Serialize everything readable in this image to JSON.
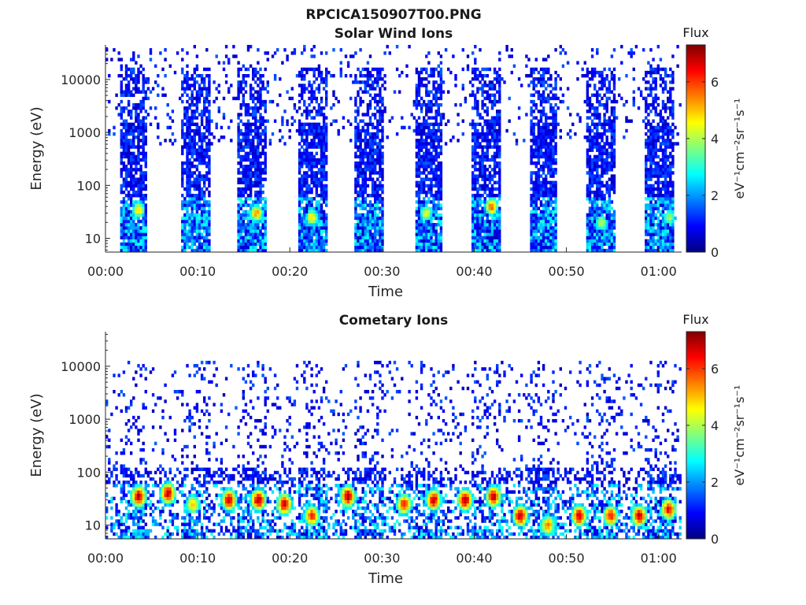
{
  "figure_title": "RPCICA150907T00.PNG",
  "colors": {
    "jet": [
      "#00007f",
      "#0000ff",
      "#007fff",
      "#00ffff",
      "#7fff7f",
      "#ffff00",
      "#ff7f00",
      "#ff0000",
      "#7f0000"
    ]
  },
  "chart_data": [
    {
      "type": "heatmap",
      "title": "Solar Wind Ions",
      "xlabel": "Time",
      "ylabel": "Energy (eV)",
      "x_unit": "minutes since 00:00",
      "xlim": [
        0,
        62.5
      ],
      "x_ticks": [
        0,
        10,
        20,
        30,
        40,
        50,
        60
      ],
      "x_tick_labels": [
        "00:00",
        "00:10",
        "00:20",
        "00:30",
        "00:40",
        "00:50",
        "01:00"
      ],
      "y_scale": "log",
      "ylim": [
        5.5,
        45000
      ],
      "y_ticks": [
        10,
        100,
        1000,
        10000
      ],
      "y_tick_labels": [
        "10",
        "100",
        "1000",
        "10000"
      ],
      "colorbar": {
        "title": "Flux",
        "label": "eV⁻¹cm⁻²sr⁻¹s⁻¹",
        "range": [
          0,
          7.3
        ],
        "ticks": [
          0,
          2,
          4,
          6
        ],
        "tick_labels": [
          "0",
          "2",
          "4",
          "6"
        ]
      },
      "sweeps_min": [
        [
          1.6,
          4.6
        ],
        [
          8.1,
          11.4
        ],
        [
          14.4,
          17.6
        ],
        [
          20.8,
          24.1
        ],
        [
          27.0,
          30.1
        ],
        [
          33.5,
          36.4
        ],
        [
          39.8,
          43.0
        ],
        [
          46.0,
          49.0
        ],
        [
          52.2,
          55.3
        ],
        [
          58.6,
          61.7
        ]
      ],
      "hot_spots": [
        {
          "t": 3.6,
          "e": 35,
          "v": 5.0
        },
        {
          "t": 16.4,
          "e": 30,
          "v": 5.2
        },
        {
          "t": 22.4,
          "e": 25,
          "v": 4.8
        },
        {
          "t": 34.8,
          "e": 30,
          "v": 4.6
        },
        {
          "t": 41.9,
          "e": 40,
          "v": 5.8
        },
        {
          "t": 53.8,
          "e": 20,
          "v": 4.2
        },
        {
          "t": 61.2,
          "e": 25,
          "v": 4.0
        }
      ]
    },
    {
      "type": "heatmap",
      "title": "Cometary Ions",
      "xlabel": "Time",
      "ylabel": "Energy (eV)",
      "x_unit": "minutes since 00:00",
      "xlim": [
        0,
        62.5
      ],
      "x_ticks": [
        0,
        10,
        20,
        30,
        40,
        50,
        60
      ],
      "x_tick_labels": [
        "00:00",
        "00:10",
        "00:20",
        "00:30",
        "00:40",
        "00:50",
        "01:00"
      ],
      "y_scale": "log",
      "ylim": [
        5.5,
        45000
      ],
      "y_ticks": [
        10,
        100,
        1000,
        10000
      ],
      "y_tick_labels": [
        "10",
        "100",
        "1000",
        "10000"
      ],
      "colorbar": {
        "title": "Flux",
        "label": "eV⁻¹cm⁻²sr⁻¹s⁻¹",
        "range": [
          0,
          7.3
        ],
        "ticks": [
          0,
          2,
          4,
          6
        ],
        "tick_labels": [
          "0",
          "2",
          "4",
          "6"
        ]
      },
      "sweeps_min": [
        [
          1.6,
          4.6
        ],
        [
          8.1,
          11.4
        ],
        [
          14.4,
          17.6
        ],
        [
          20.8,
          24.1
        ],
        [
          27.0,
          30.1
        ],
        [
          33.5,
          36.4
        ],
        [
          39.8,
          43.0
        ],
        [
          46.0,
          49.0
        ],
        [
          52.2,
          55.3
        ],
        [
          58.6,
          61.7
        ]
      ],
      "hot_spots": [
        {
          "t": 3.6,
          "e": 35,
          "v": 7.0
        },
        {
          "t": 6.8,
          "e": 40,
          "v": 6.8
        },
        {
          "t": 9.5,
          "e": 25,
          "v": 5.0
        },
        {
          "t": 13.4,
          "e": 30,
          "v": 6.8
        },
        {
          "t": 16.6,
          "e": 30,
          "v": 7.0
        },
        {
          "t": 19.4,
          "e": 25,
          "v": 6.8
        },
        {
          "t": 22.4,
          "e": 15,
          "v": 6.2
        },
        {
          "t": 26.3,
          "e": 35,
          "v": 7.0
        },
        {
          "t": 32.4,
          "e": 25,
          "v": 6.2
        },
        {
          "t": 35.6,
          "e": 30,
          "v": 6.8
        },
        {
          "t": 39.0,
          "e": 30,
          "v": 7.0
        },
        {
          "t": 42.1,
          "e": 35,
          "v": 6.8
        },
        {
          "t": 45.0,
          "e": 15,
          "v": 6.8
        },
        {
          "t": 48.0,
          "e": 10,
          "v": 5.5
        },
        {
          "t": 51.4,
          "e": 15,
          "v": 6.8
        },
        {
          "t": 54.8,
          "e": 15,
          "v": 6.2
        },
        {
          "t": 57.9,
          "e": 15,
          "v": 6.8
        },
        {
          "t": 61.1,
          "e": 20,
          "v": 6.5
        }
      ]
    }
  ]
}
